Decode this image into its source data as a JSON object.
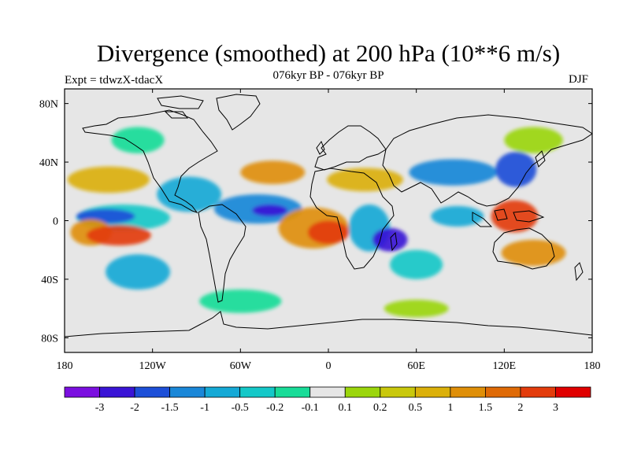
{
  "title": "Divergence (smoothed) at 200 hPa (10**6 m/s)",
  "subtitle": "076kyr BP - 076kyr BP",
  "expt_label": "Expt = tdwzX-tdacX",
  "season": "DJF",
  "map": {
    "projection": "equirectangular",
    "lon_range": [
      -180,
      180
    ],
    "lat_range": [
      -90,
      90
    ],
    "background_color": "#e6e6e6",
    "coastline_color": "#000000"
  },
  "x_ticks": [
    {
      "value": -180,
      "label": "180"
    },
    {
      "value": -120,
      "label": "120W"
    },
    {
      "value": -60,
      "label": "60W"
    },
    {
      "value": 0,
      "label": "0"
    },
    {
      "value": 60,
      "label": "60E"
    },
    {
      "value": 120,
      "label": "120E"
    },
    {
      "value": 180,
      "label": "180"
    }
  ],
  "y_ticks": [
    {
      "value": 80,
      "label": "80N"
    },
    {
      "value": 40,
      "label": "40N"
    },
    {
      "value": 0,
      "label": "0"
    },
    {
      "value": -40,
      "label": "40S"
    },
    {
      "value": -80,
      "label": "80S"
    }
  ],
  "colorbar": {
    "colors": [
      "#7b0fe0",
      "#3a14d6",
      "#1d4fd8",
      "#1a87d8",
      "#15a9d6",
      "#14c8c8",
      "#18dc98",
      "#e6e6e6",
      "#9bd60c",
      "#c9c80c",
      "#dbb00a",
      "#df8f08",
      "#df6a06",
      "#e33c0c",
      "#e00000"
    ],
    "labels": [
      "-3",
      "-2",
      "-1.5",
      "-1",
      "-0.5",
      "-0.2",
      "-0.1",
      "0.1",
      "0.2",
      "0.5",
      "1",
      "1.5",
      "2",
      "3"
    ]
  },
  "field_blobs": [
    {
      "lon": -140,
      "lat": 2,
      "rx": 32,
      "ry": 9,
      "color": "#14c8c8"
    },
    {
      "lon": -152,
      "lat": 3,
      "rx": 20,
      "ry": 5,
      "color": "#1d4fd8"
    },
    {
      "lon": -162,
      "lat": -8,
      "rx": 14,
      "ry": 9,
      "color": "#df8f08"
    },
    {
      "lon": -143,
      "lat": -10,
      "rx": 22,
      "ry": 7,
      "color": "#e33c0c"
    },
    {
      "lon": -150,
      "lat": 28,
      "rx": 28,
      "ry": 9,
      "color": "#dbb00a"
    },
    {
      "lon": -130,
      "lat": -35,
      "rx": 22,
      "ry": 12,
      "color": "#15a9d6"
    },
    {
      "lon": -95,
      "lat": 18,
      "rx": 22,
      "ry": 12,
      "color": "#15a9d6"
    },
    {
      "lon": -48,
      "lat": 8,
      "rx": 30,
      "ry": 10,
      "color": "#1a87d8"
    },
    {
      "lon": -40,
      "lat": 7,
      "rx": 12,
      "ry": 4,
      "color": "#3a14d6"
    },
    {
      "lon": -38,
      "lat": 33,
      "rx": 22,
      "ry": 8,
      "color": "#df8f08"
    },
    {
      "lon": -10,
      "lat": -5,
      "rx": 24,
      "ry": 14,
      "color": "#df8f08"
    },
    {
      "lon": 0,
      "lat": -8,
      "rx": 14,
      "ry": 8,
      "color": "#e33c0c"
    },
    {
      "lon": 28,
      "lat": -5,
      "rx": 14,
      "ry": 16,
      "color": "#15a9d6"
    },
    {
      "lon": 42,
      "lat": -13,
      "rx": 12,
      "ry": 8,
      "color": "#3a14d6"
    },
    {
      "lon": 25,
      "lat": 28,
      "rx": 26,
      "ry": 8,
      "color": "#dbb00a"
    },
    {
      "lon": 85,
      "lat": 33,
      "rx": 30,
      "ry": 9,
      "color": "#1a87d8"
    },
    {
      "lon": 88,
      "lat": 3,
      "rx": 18,
      "ry": 7,
      "color": "#15a9d6"
    },
    {
      "lon": 127,
      "lat": 3,
      "rx": 16,
      "ry": 11,
      "color": "#e33c0c"
    },
    {
      "lon": 128,
      "lat": 35,
      "rx": 14,
      "ry": 12,
      "color": "#1d4fd8"
    },
    {
      "lon": 140,
      "lat": -22,
      "rx": 22,
      "ry": 9,
      "color": "#df8f08"
    },
    {
      "lon": 60,
      "lat": -30,
      "rx": 18,
      "ry": 10,
      "color": "#14c8c8"
    },
    {
      "lon": -130,
      "lat": 55,
      "rx": 18,
      "ry": 9,
      "color": "#18dc98"
    },
    {
      "lon": 140,
      "lat": 55,
      "rx": 20,
      "ry": 9,
      "color": "#9bd60c"
    },
    {
      "lon": -60,
      "lat": -55,
      "rx": 28,
      "ry": 8,
      "color": "#18dc98"
    },
    {
      "lon": 60,
      "lat": -60,
      "rx": 22,
      "ry": 6,
      "color": "#9bd60c"
    }
  ]
}
